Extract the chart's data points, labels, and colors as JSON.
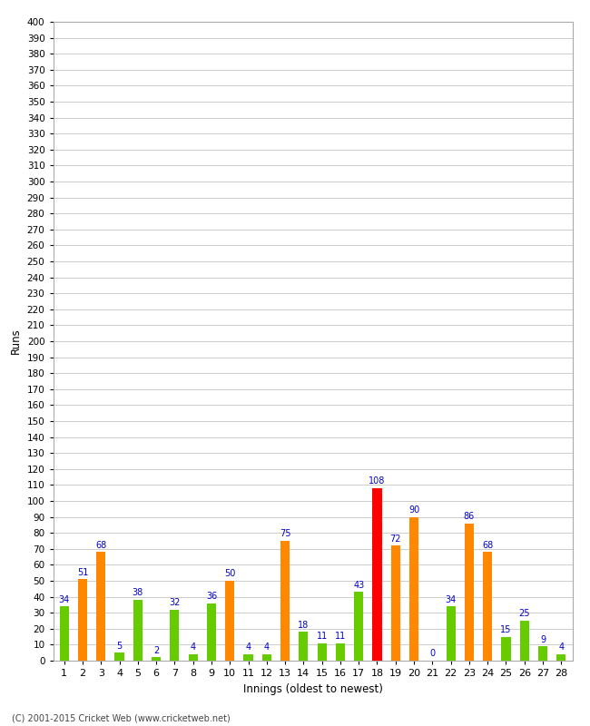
{
  "xlabel": "Innings (oldest to newest)",
  "ylabel": "Runs",
  "innings": [
    1,
    2,
    3,
    4,
    5,
    6,
    7,
    8,
    9,
    10,
    11,
    12,
    13,
    14,
    15,
    16,
    17,
    18,
    19,
    20,
    21,
    22,
    23,
    24,
    25,
    26,
    27,
    28
  ],
  "values": [
    34,
    51,
    68,
    5,
    38,
    2,
    32,
    4,
    36,
    50,
    4,
    4,
    75,
    18,
    11,
    11,
    43,
    108,
    72,
    90,
    0,
    34,
    86,
    68,
    15,
    25,
    9,
    4
  ],
  "colors": [
    "#66cc00",
    "#ff8800",
    "#ff8800",
    "#66cc00",
    "#66cc00",
    "#66cc00",
    "#66cc00",
    "#66cc00",
    "#66cc00",
    "#ff8800",
    "#66cc00",
    "#66cc00",
    "#ff8800",
    "#66cc00",
    "#66cc00",
    "#66cc00",
    "#66cc00",
    "#ff0000",
    "#ff8800",
    "#ff8800",
    "#66cc00",
    "#66cc00",
    "#ff8800",
    "#ff8800",
    "#66cc00",
    "#66cc00",
    "#66cc00",
    "#66cc00"
  ],
  "ylim": [
    0,
    400
  ],
  "yticks": [
    0,
    10,
    20,
    30,
    40,
    50,
    60,
    70,
    80,
    90,
    100,
    110,
    120,
    130,
    140,
    150,
    160,
    170,
    180,
    190,
    200,
    210,
    220,
    230,
    240,
    250,
    260,
    270,
    280,
    290,
    300,
    310,
    320,
    330,
    340,
    350,
    360,
    370,
    380,
    390,
    400
  ],
  "background_color": "#ffffff",
  "grid_color": "#cccccc",
  "label_color": "#0000cc",
  "footer": "(C) 2001-2015 Cricket Web (www.cricketweb.net)",
  "bar_width": 0.5
}
